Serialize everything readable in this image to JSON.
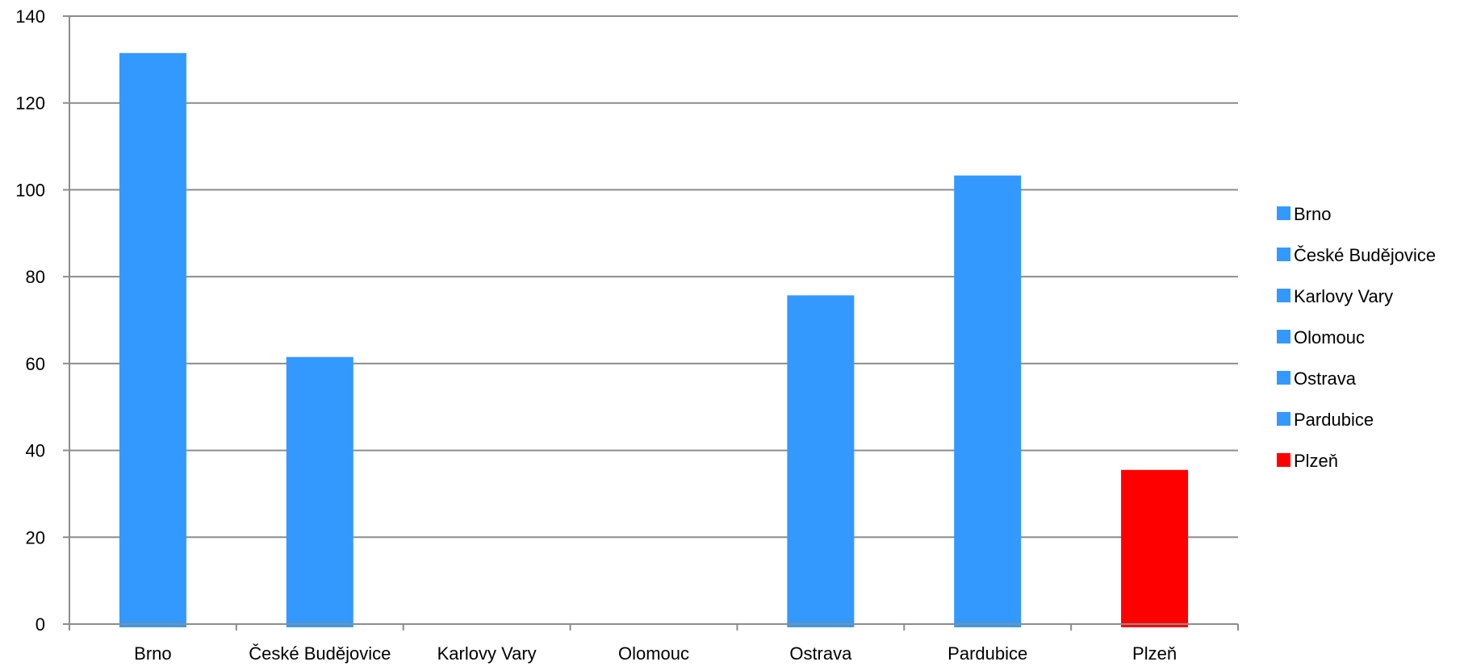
{
  "chart_data": {
    "type": "bar",
    "title": "",
    "xlabel": "",
    "ylabel": "",
    "categories": [
      "Brno",
      "České Budějovice",
      "Karlovy Vary",
      "Olomouc",
      "Ostrava",
      "Pardubice",
      "Plzeň"
    ],
    "values": [
      131.5,
      61.5,
      0,
      0,
      75.7,
      103.3,
      35.5
    ],
    "bar_colors": [
      "#3399ff",
      "#3399ff",
      "#3399ff",
      "#3399ff",
      "#3399ff",
      "#3399ff",
      "#ff0000"
    ],
    "ylim": [
      0,
      140
    ],
    "yticks": [
      0,
      20,
      40,
      60,
      80,
      100,
      120,
      140
    ],
    "grid": true,
    "legend": {
      "position": "right",
      "entries": [
        {
          "label": "Brno",
          "color": "#3399ff"
        },
        {
          "label": "České Budějovice",
          "color": "#3399ff"
        },
        {
          "label": "Karlovy Vary",
          "color": "#3399ff"
        },
        {
          "label": "Olomouc",
          "color": "#3399ff"
        },
        {
          "label": "Ostrava",
          "color": "#3399ff"
        },
        {
          "label": "Pardubice",
          "color": "#3399ff"
        },
        {
          "label": "Plzeň",
          "color": "#ff0000"
        }
      ]
    }
  }
}
